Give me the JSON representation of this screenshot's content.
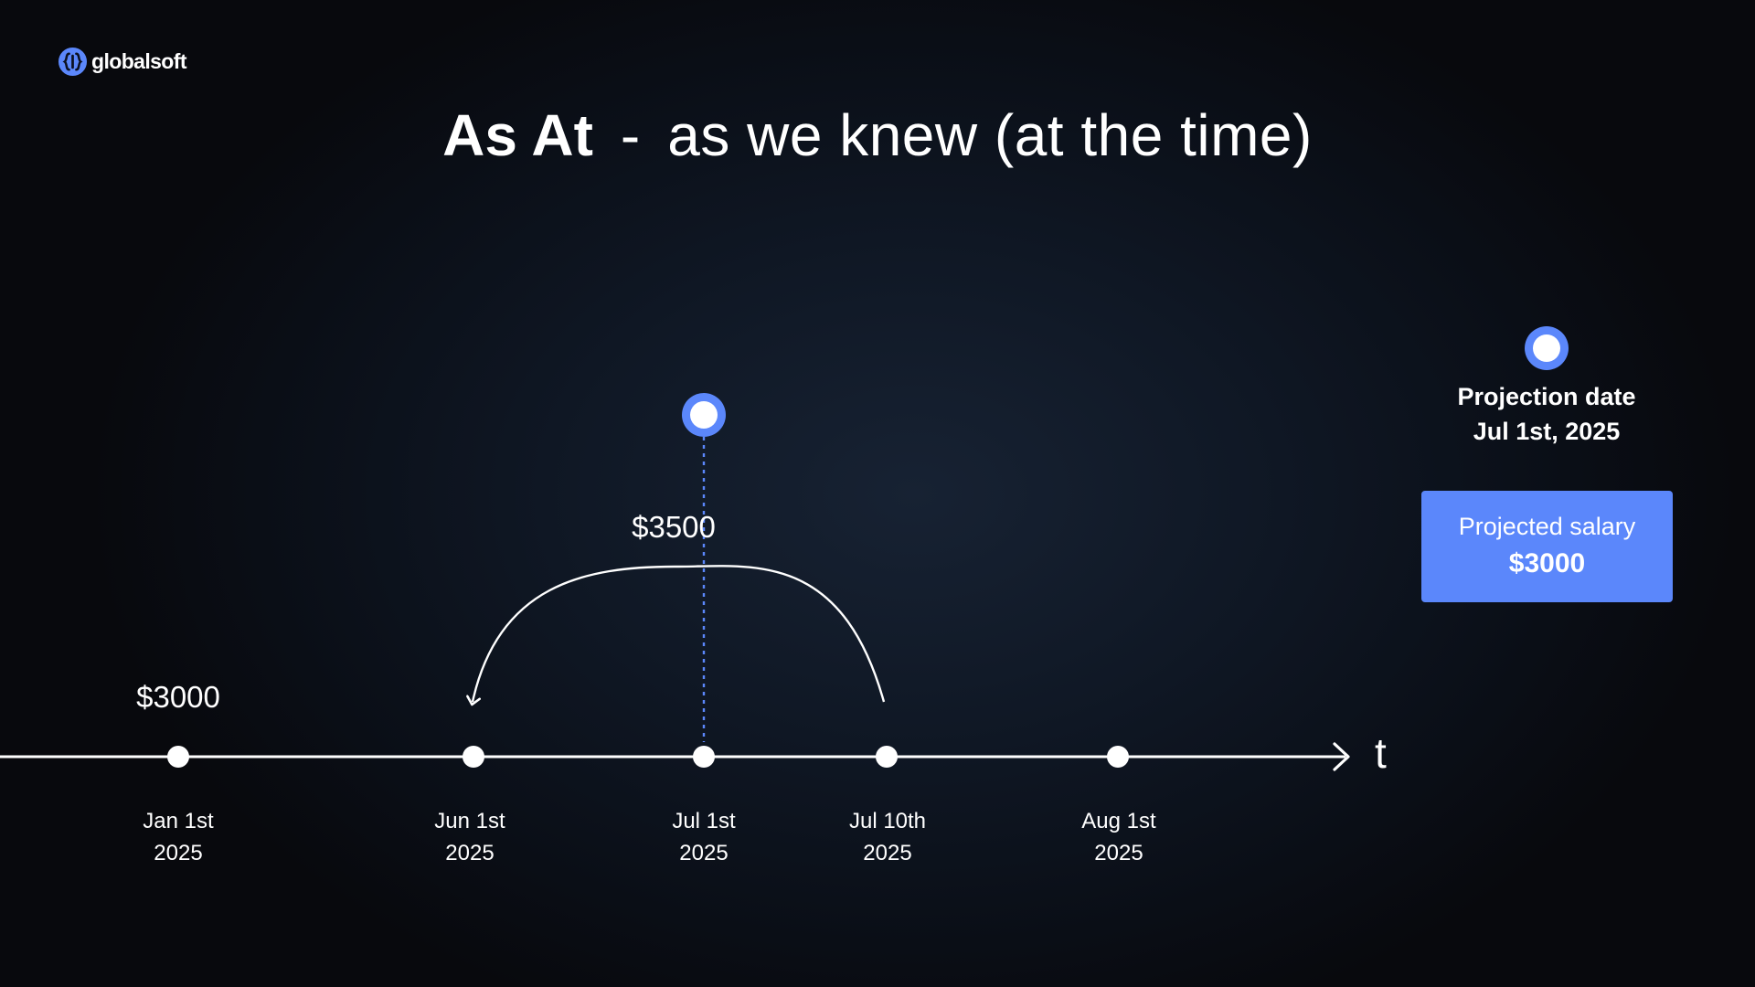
{
  "brand": {
    "name": "globalsoft",
    "accent": "#5b87fb"
  },
  "title": {
    "bold": "As At",
    "separator": "-",
    "rest": "as we knew (at the time)"
  },
  "timeline": {
    "axis_label": "t",
    "points": [
      {
        "date_line1": "Jan 1st",
        "date_line2": "2025"
      },
      {
        "date_line1": "Jun 1st",
        "date_line2": "2025"
      },
      {
        "date_line1": "Jul 1st",
        "date_line2": "2025"
      },
      {
        "date_line1": "Jul 10th",
        "date_line2": "2025"
      },
      {
        "date_line1": "Aug 1st",
        "date_line2": "2025"
      }
    ],
    "values": [
      {
        "label": "$3000",
        "at": "Jan 1st 2025"
      },
      {
        "label": "$3500",
        "arc_from": "Jul 10th 2025",
        "arc_to": "Jun 1st 2025"
      }
    ]
  },
  "legend": {
    "marker": "projection-date-marker",
    "line1": "Projection date",
    "line2": "Jul 1st, 2025"
  },
  "projected": {
    "caption": "Projected salary",
    "value": "$3000"
  }
}
